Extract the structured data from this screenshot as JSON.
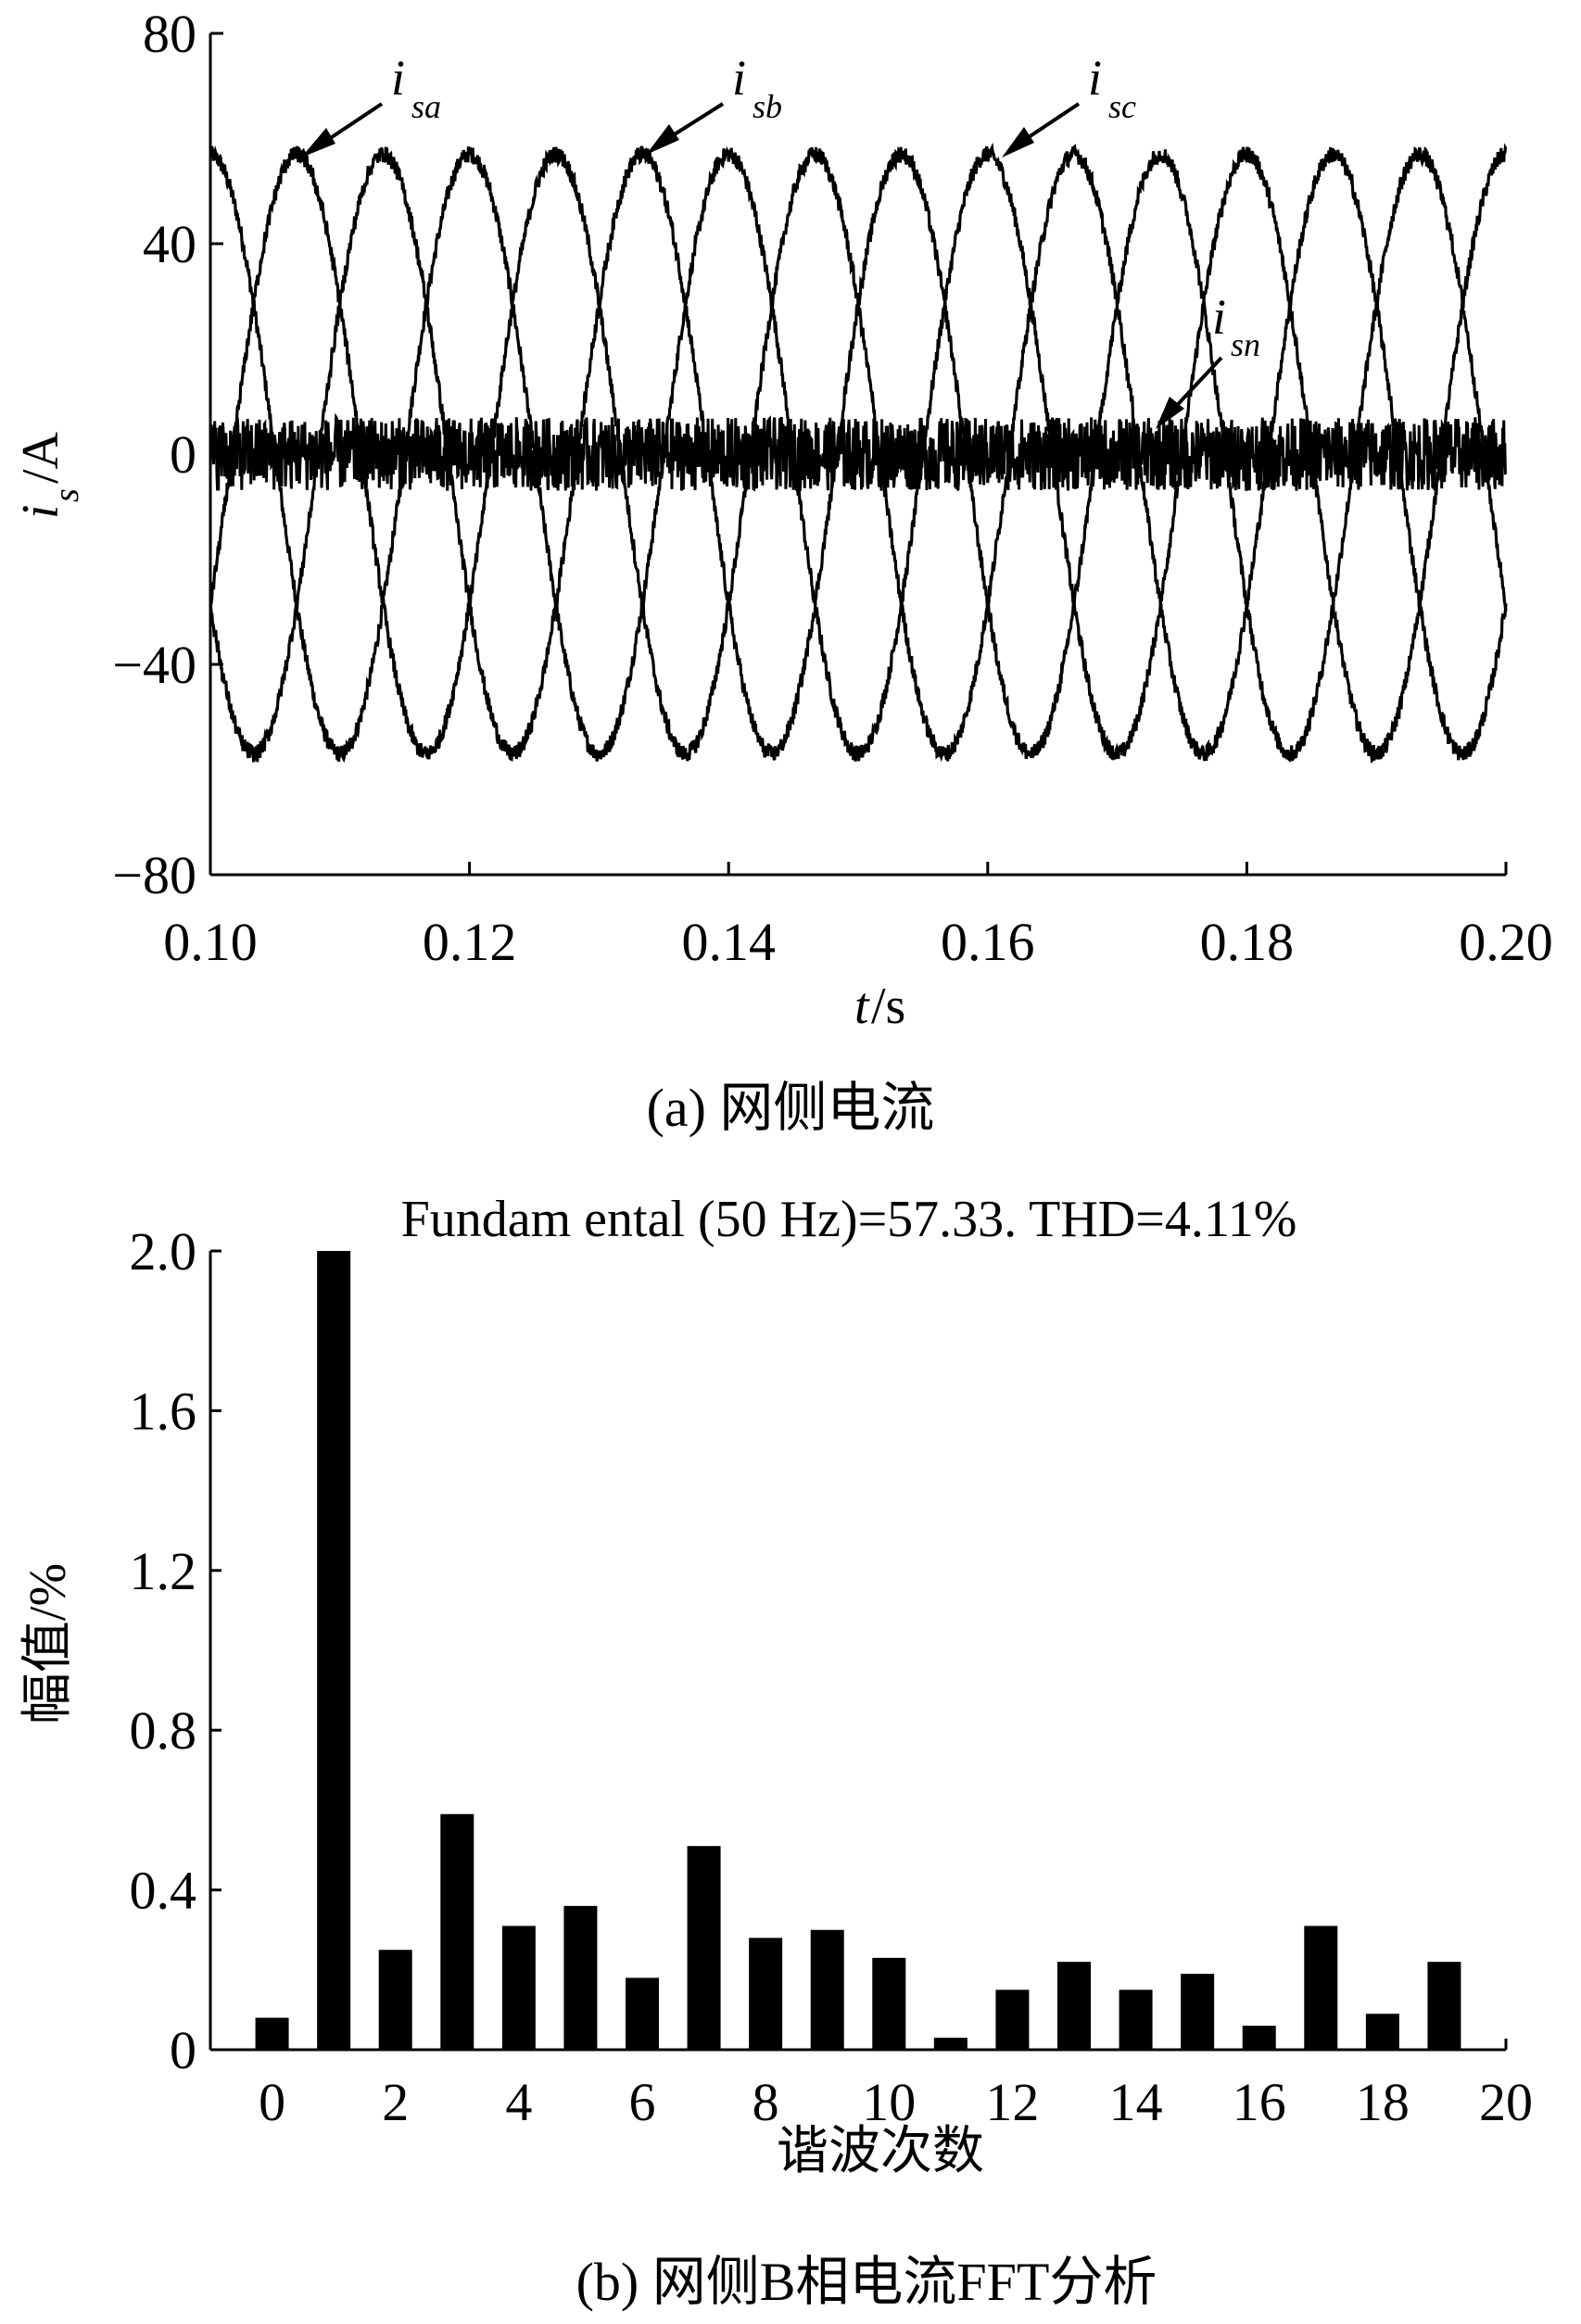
{
  "chart_data": [
    {
      "type": "line",
      "xlabel_var": "t",
      "xlabel_unit": "/s",
      "ylabel_var": "i",
      "ylabel_sub": "s",
      "ylabel_unit": "/A",
      "xlim": [
        0.1,
        0.2
      ],
      "ylim": [
        -80,
        80
      ],
      "xticks": [
        "0.10",
        "0.12",
        "0.14",
        "0.16",
        "0.18",
        "0.20"
      ],
      "yticks": [
        "80",
        "40",
        "0",
        "−40",
        "−80"
      ],
      "caption": "(a) 网侧电流",
      "frequency_hz": 50,
      "series": [
        {
          "name": "i",
          "sub": "sa",
          "amplitude": 57,
          "phase_deg": 0
        },
        {
          "name": "i",
          "sub": "sb",
          "amplitude": 57,
          "phase_deg": -120
        },
        {
          "name": "i",
          "sub": "sc",
          "amplitude": 57,
          "phase_deg": 120
        },
        {
          "name": "i",
          "sub": "sn",
          "amplitude": 0,
          "noise_band": 7
        }
      ]
    },
    {
      "type": "bar",
      "title": "Fundam ental (50 Hz)=57.33. THD=4.11%",
      "xlabel": "谐波次数",
      "ylabel": "幅值/%",
      "xlim": [
        -1,
        20
      ],
      "ylim": [
        0,
        2.0
      ],
      "xticks": [
        "0",
        "2",
        "4",
        "6",
        "8",
        "10",
        "12",
        "14",
        "16",
        "18",
        "20"
      ],
      "yticks": [
        "2.0",
        "1.6",
        "1.2",
        "0.8",
        "0.4",
        "0"
      ],
      "caption": "(b) 网侧B相电流FFT分析",
      "categories": [
        0,
        1,
        2,
        3,
        4,
        5,
        6,
        7,
        8,
        9,
        10,
        11,
        12,
        13,
        14,
        15,
        16,
        17,
        18,
        19
      ],
      "values": [
        0.08,
        2.0,
        0.25,
        0.59,
        0.31,
        0.36,
        0.18,
        0.51,
        0.28,
        0.3,
        0.23,
        0.03,
        0.15,
        0.22,
        0.15,
        0.19,
        0.06,
        0.31,
        0.09,
        0.22
      ]
    }
  ]
}
